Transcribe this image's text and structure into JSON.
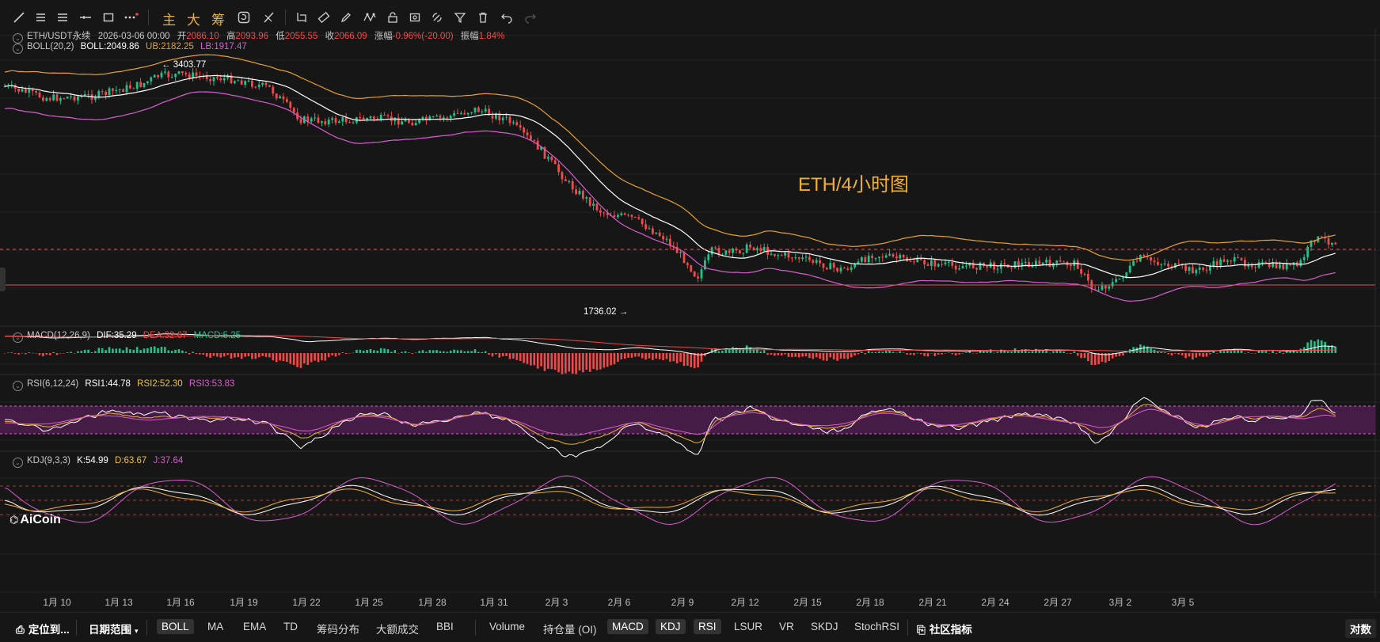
{
  "toolbar": {
    "text_buttons": [
      "主",
      "大",
      "筹"
    ]
  },
  "header": {
    "symbol": "ETH/USDT永续",
    "datetime": "2026-03-06 00:00",
    "open_label": "开",
    "open": "2086.10",
    "high_label": "高",
    "high": "2093.96",
    "low_label": "低",
    "low": "2055.55",
    "close_label": "收",
    "close": "2066.09",
    "change_label": "涨幅",
    "change": "-0.96%(-20.00)",
    "amp_label": "振幅",
    "amp": "1.84%"
  },
  "boll": {
    "name": "BOLL(20,2)",
    "mid": "BOLL:2049.86",
    "ub": "UB:2182.25",
    "lb": "LB:1917.47"
  },
  "macd": {
    "name": "MACD(12,26,9)",
    "dif": "DIF:35.29",
    "dea": "DEA:32.67",
    "macd": "MACD:5.25"
  },
  "rsi": {
    "name": "RSI(6,12,24)",
    "rsi1": "RSI1:44.78",
    "rsi2": "RSI2:52.30",
    "rsi3": "RSI3:53.83"
  },
  "kdj": {
    "name": "KDJ(9,3,3)",
    "k": "K:54.99",
    "d": "D:63.67",
    "j": "J:37.64"
  },
  "annotations": {
    "chart_title": "ETH/4小时图",
    "high_marker": "← 3403.77",
    "low_marker": "1736.02 →",
    "watermark": "AiCoin"
  },
  "x_axis": [
    "1月 10",
    "1月 13",
    "1月 16",
    "1月 19",
    "1月 22",
    "1月 25",
    "1月 28",
    "1月 31",
    "2月 3",
    "2月 6",
    "2月 9",
    "2月 12",
    "2月 15",
    "2月 18",
    "2月 21",
    "2月 24",
    "2月 27",
    "3月 2",
    "3月 5"
  ],
  "bottom_bar": {
    "locate": "定位到...",
    "date_range": "日期范围",
    "main_indicators": [
      "BOLL",
      "MA",
      "EMA",
      "TD",
      "筹码分布",
      "大额成交",
      "BBI"
    ],
    "sub_indicators": [
      "Volume",
      "持仓量 (OI)",
      "MACD",
      "KDJ",
      "RSI",
      "LSUR",
      "VR",
      "SKDJ",
      "StochRSI"
    ],
    "community": "社区指标",
    "right_label": "对数"
  },
  "colors": {
    "up": "#23c08a",
    "down": "#f04a4a",
    "ub": "#e8a030",
    "mid": "#ffffff",
    "lb": "#d85cd0",
    "title": "#f0b030",
    "rsi_band": "#4a1d4a"
  }
}
